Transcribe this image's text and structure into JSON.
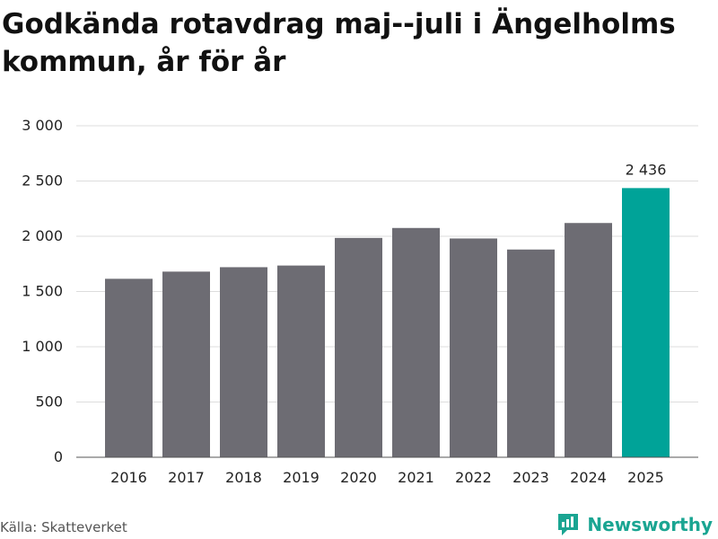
{
  "header": {
    "title": "Godkända rotavdrag maj--juli i Ängelholms kommun, år för år"
  },
  "footer": {
    "source": "Källa: Skatteverket",
    "brand": "Newsworthy"
  },
  "colors": {
    "bar": "#6d6c73",
    "highlight": "#00a398",
    "grid": "#dddddd",
    "brand": "#1aa592"
  },
  "icons": {
    "brand_logo": "newsworthy-logo-icon"
  },
  "chart_data": {
    "type": "bar",
    "title": "Godkända rotavdrag maj--juli i Ängelholms kommun, år för år",
    "xlabel": "",
    "ylabel": "",
    "categories": [
      "2016",
      "2017",
      "2018",
      "2019",
      "2020",
      "2021",
      "2022",
      "2023",
      "2024",
      "2025"
    ],
    "values": [
      1615,
      1680,
      1720,
      1735,
      1985,
      2075,
      1980,
      1880,
      2120,
      2436
    ],
    "highlight_index": 9,
    "data_labels": [
      null,
      null,
      null,
      null,
      null,
      null,
      null,
      null,
      null,
      "2 436"
    ],
    "ylim": [
      0,
      3000
    ],
    "yticks": [
      0,
      500,
      1000,
      1500,
      2000,
      2500,
      3000
    ],
    "ytick_labels": [
      "0",
      "500",
      "1 000",
      "1 500",
      "2 000",
      "2 500",
      "3 000"
    ],
    "grid": true,
    "legend": "none"
  }
}
